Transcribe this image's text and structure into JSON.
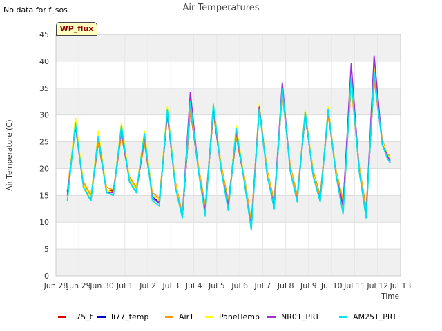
{
  "note": "No data for f_sos",
  "badge": "WP_flux",
  "chart_data": {
    "type": "line",
    "title": "Air Temperatures",
    "xlabel": "Time",
    "ylabel": "Air Temperature (C)",
    "xlim": [
      0,
      15
    ],
    "ylim": [
      0,
      45
    ],
    "x_ticks": [
      "Jun 28",
      "Jun 29",
      "Jun 30",
      "Jul 1",
      "Jul 2",
      "Jul 3",
      "Jul 4",
      "Jul 5",
      "Jul 6",
      "Jul 7",
      "Jul 8",
      "Jul 9",
      "Jul 10",
      "Jul 11",
      "Jul 12",
      "Jul 13"
    ],
    "y_ticks": [
      0,
      5,
      10,
      15,
      20,
      25,
      30,
      35,
      40,
      45
    ],
    "grid": true,
    "legend_position": "bottom",
    "series_colors": {
      "li75_t": "#dd0000",
      "li77_temp": "#0000cc",
      "AirT": "#ff9900",
      "PanelTemp": "#ffff00",
      "NR01_PRT": "#9b30d9",
      "AM25T_PRT": "#00e5ee"
    },
    "series": [
      {
        "name": "li75_t",
        "x": [
          0.5,
          0.85,
          1.2,
          1.52,
          1.85,
          2.2,
          2.5,
          2.85,
          3.2,
          3.5,
          3.85,
          4.2,
          4.5,
          4.85,
          5.2,
          5.5,
          5.85,
          6.2,
          6.5,
          6.85,
          7.2,
          7.5,
          7.85,
          8.2,
          8.5,
          8.85,
          9.2,
          9.5,
          9.85,
          10.2,
          10.5,
          10.85,
          11.2,
          11.5,
          11.85,
          12.2,
          12.5,
          12.85,
          13.2,
          13.5,
          13.85,
          14.2,
          14.42,
          14.55
        ],
        "y": [
          15.8,
          28.0,
          17.0,
          14.5,
          25.0,
          16.0,
          15.8,
          26.5,
          18.0,
          16.0,
          25.0,
          15.0,
          14.0,
          30.0,
          17.0,
          11.0,
          31.0,
          20.0,
          12.5,
          30.5,
          20.0,
          13.5,
          26.0,
          18.0,
          9.5,
          31.5,
          19.0,
          13.5,
          34.5,
          20.0,
          14.5,
          30.0,
          19.0,
          14.5,
          30.5,
          19.0,
          13.5,
          36.0,
          20.0,
          12.0,
          37.0,
          25.0,
          22.0,
          22.0
        ]
      },
      {
        "name": "li77_temp",
        "x": [
          0.5,
          0.85,
          1.2,
          1.52,
          1.85,
          2.2,
          2.5,
          2.85,
          3.2,
          3.5,
          3.85,
          4.2,
          4.5,
          4.85,
          5.2,
          5.5,
          5.85,
          6.2,
          6.5,
          6.85,
          7.2,
          7.5,
          7.85,
          8.2,
          8.5,
          8.85,
          9.2,
          9.5,
          9.85,
          10.2,
          10.5,
          10.85,
          11.2,
          11.5,
          11.85,
          12.2,
          12.5,
          12.85,
          13.2,
          13.5,
          13.85,
          14.2,
          14.42,
          14.55
        ],
        "y": [
          15.5,
          28.5,
          17.0,
          14.5,
          25.5,
          16.0,
          15.5,
          27.0,
          18.0,
          16.0,
          25.5,
          15.0,
          13.5,
          30.5,
          17.0,
          11.0,
          31.5,
          20.0,
          12.5,
          30.8,
          20.0,
          13.0,
          26.5,
          18.0,
          9.0,
          31.5,
          19.0,
          13.0,
          34.5,
          20.0,
          14.5,
          30.0,
          19.0,
          14.5,
          30.5,
          19.0,
          13.0,
          36.5,
          20.0,
          11.5,
          37.5,
          25.0,
          22.0,
          21.5
        ]
      },
      {
        "name": "AirT",
        "x": [
          0.5,
          0.85,
          1.2,
          1.52,
          1.85,
          2.2,
          2.5,
          2.85,
          3.2,
          3.5,
          3.85,
          4.2,
          4.5,
          4.85,
          5.2,
          5.5,
          5.85,
          6.2,
          6.5,
          6.85,
          7.2,
          7.5,
          7.85,
          8.2,
          8.5,
          8.85,
          9.2,
          9.5,
          9.85,
          10.2,
          10.5,
          10.85,
          11.2,
          11.5,
          11.85,
          12.2,
          12.5,
          12.85,
          13.2,
          13.5,
          13.85,
          14.2,
          14.42,
          14.55
        ],
        "y": [
          16.0,
          28.0,
          17.5,
          15.0,
          25.0,
          16.5,
          16.0,
          26.5,
          18.5,
          16.5,
          25.0,
          15.5,
          14.5,
          30.0,
          17.5,
          11.5,
          31.0,
          20.5,
          13.0,
          30.5,
          20.5,
          14.0,
          26.0,
          18.5,
          10.0,
          31.0,
          19.5,
          14.0,
          34.0,
          20.5,
          15.0,
          30.0,
          19.5,
          15.0,
          30.0,
          19.5,
          14.0,
          35.5,
          20.5,
          12.5,
          36.5,
          25.5,
          22.5,
          22.5
        ]
      },
      {
        "name": "PanelTemp",
        "x": [
          0.5,
          0.85,
          1.2,
          1.52,
          1.85,
          2.2,
          2.5,
          2.85,
          3.2,
          3.5,
          3.85,
          4.2,
          4.5,
          4.85,
          5.2,
          5.5,
          5.85,
          6.2,
          6.5,
          6.85,
          7.2,
          7.5,
          7.85,
          8.2,
          8.5,
          8.85,
          9.2,
          9.5,
          9.85,
          10.2,
          10.5,
          10.85,
          11.2,
          11.5,
          11.85,
          12.2,
          12.5,
          12.85,
          13.2,
          13.5,
          13.85,
          14.2,
          14.42,
          14.55
        ],
        "y": [
          15.0,
          29.5,
          17.0,
          14.5,
          27.0,
          16.0,
          15.5,
          28.5,
          18.0,
          16.0,
          27.0,
          15.0,
          14.0,
          31.5,
          17.0,
          11.0,
          33.0,
          20.0,
          12.0,
          32.0,
          20.0,
          13.0,
          28.0,
          18.0,
          9.0,
          32.0,
          19.0,
          13.0,
          35.0,
          20.0,
          14.0,
          31.0,
          19.0,
          14.0,
          31.5,
          19.0,
          12.5,
          36.5,
          20.0,
          11.0,
          39.0,
          25.0,
          22.5,
          22.0
        ]
      },
      {
        "name": "NR01_PRT",
        "x": [
          0.5,
          0.85,
          1.2,
          1.52,
          1.85,
          2.2,
          2.5,
          2.85,
          3.2,
          3.5,
          3.85,
          4.2,
          4.5,
          4.85,
          5.2,
          5.5,
          5.85,
          6.2,
          6.5,
          6.85,
          7.2,
          7.5,
          7.85,
          8.2,
          8.5,
          8.85,
          9.2,
          9.5,
          9.85,
          10.2,
          10.5,
          10.85,
          11.2,
          11.5,
          11.85,
          12.2,
          12.5,
          12.85,
          13.2,
          13.5,
          13.85,
          14.2,
          14.42,
          14.55
        ],
        "y": [
          15.0,
          28.0,
          16.5,
          14.0,
          26.0,
          15.5,
          15.5,
          27.5,
          17.5,
          15.5,
          26.0,
          14.5,
          13.5,
          30.5,
          16.5,
          11.0,
          34.2,
          19.5,
          12.0,
          31.5,
          19.5,
          13.0,
          27.0,
          17.5,
          9.0,
          31.5,
          18.5,
          13.0,
          36.0,
          19.5,
          14.0,
          30.5,
          18.5,
          14.0,
          31.0,
          18.5,
          13.0,
          39.5,
          19.5,
          11.0,
          41.0,
          24.5,
          22.5,
          21.0
        ]
      },
      {
        "name": "AM25T_PRT",
        "x": [
          0.5,
          0.85,
          1.2,
          1.52,
          1.85,
          2.2,
          2.5,
          2.85,
          3.2,
          3.5,
          3.85,
          4.2,
          4.5,
          4.85,
          5.2,
          5.5,
          5.85,
          6.2,
          6.5,
          6.85,
          7.2,
          7.5,
          7.85,
          8.2,
          8.5,
          8.85,
          9.2,
          9.5,
          9.85,
          10.2,
          10.5,
          10.85,
          11.2,
          11.5,
          11.85,
          12.2,
          12.5,
          12.85,
          13.2,
          13.5,
          13.85,
          14.2,
          14.42,
          14.55
        ],
        "y": [
          14.0,
          28.5,
          16.5,
          14.0,
          26.0,
          15.5,
          15.0,
          28.0,
          17.5,
          15.5,
          26.5,
          14.0,
          13.0,
          31.0,
          16.5,
          10.8,
          32.5,
          19.5,
          11.2,
          32.0,
          19.5,
          12.2,
          27.5,
          17.5,
          8.5,
          31.0,
          18.5,
          12.5,
          35.0,
          19.5,
          13.8,
          30.5,
          18.5,
          13.8,
          31.0,
          18.5,
          11.5,
          37.0,
          19.5,
          10.8,
          38.0,
          24.5,
          22.0,
          21.0
        ]
      }
    ]
  }
}
